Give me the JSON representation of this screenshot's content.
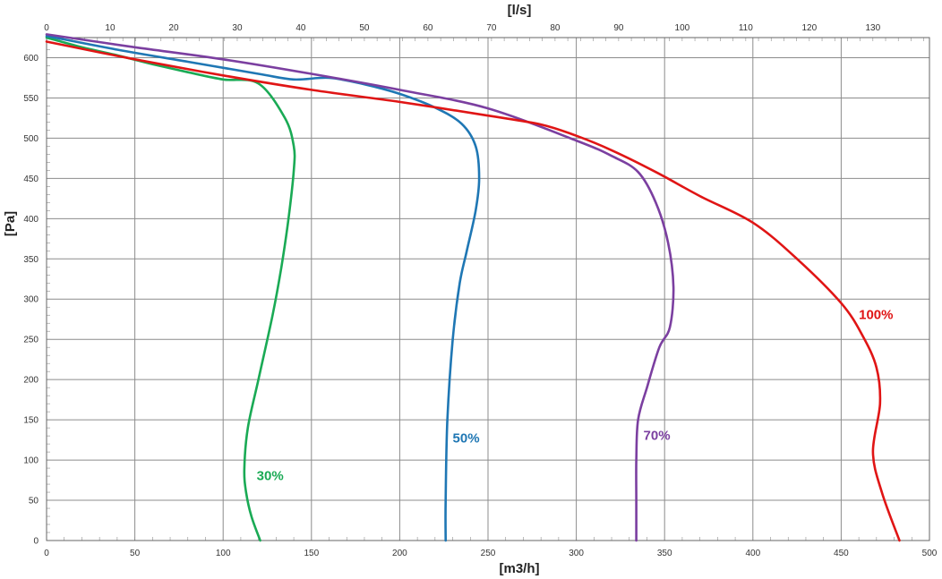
{
  "chart_data": {
    "type": "line",
    "xlabel": "[m3/h]",
    "x2label": "[l/s]",
    "ylabel": "[Pa]",
    "xlim": [
      0,
      500
    ],
    "x2lim": [
      0,
      138.9
    ],
    "ylim": [
      0,
      625
    ],
    "xticks": [
      0,
      50,
      100,
      150,
      200,
      250,
      300,
      350,
      400,
      450,
      500
    ],
    "x2ticks": [
      0,
      10,
      20,
      30,
      40,
      50,
      60,
      70,
      80,
      90,
      100,
      110,
      120,
      130
    ],
    "yticks": [
      0,
      50,
      100,
      150,
      200,
      250,
      300,
      350,
      400,
      450,
      500,
      550,
      600
    ],
    "grid": true,
    "series": [
      {
        "name": "30%",
        "color": "#1aaa55",
        "x": [
          0,
          20,
          40,
          60,
          80,
          100,
          120,
          135,
          140,
          140,
          137,
          133,
          128,
          120,
          114,
          112,
          113,
          116,
          121
        ],
        "y": [
          625,
          613,
          603,
          592,
          582,
          573,
          568,
          525,
          490,
          460,
          400,
          340,
          280,
          200,
          140,
          90,
          60,
          30,
          0
        ]
      },
      {
        "name": "50%",
        "color": "#1f77b4",
        "x": [
          0,
          40,
          80,
          120,
          140,
          160,
          180,
          200,
          220,
          235,
          243,
          245,
          243,
          238,
          234,
          230,
          227,
          226,
          226
        ],
        "y": [
          627,
          610,
          595,
          580,
          573,
          575,
          567,
          555,
          538,
          518,
          490,
          450,
          410,
          360,
          320,
          250,
          150,
          50,
          0
        ]
      },
      {
        "name": "70%",
        "color": "#7b3fa0",
        "x": [
          0,
          50,
          100,
          150,
          200,
          250,
          300,
          320,
          335,
          345,
          352,
          355,
          353,
          347,
          340,
          335,
          334,
          334,
          334
        ],
        "y": [
          629,
          613,
          598,
          580,
          560,
          537,
          497,
          478,
          458,
          420,
          370,
          315,
          265,
          240,
          190,
          150,
          100,
          50,
          0
        ]
      },
      {
        "name": "100%",
        "color": "#e01515",
        "x": [
          0,
          50,
          100,
          150,
          200,
          250,
          280,
          300,
          320,
          345,
          370,
          400,
          425,
          450,
          462,
          470,
          472,
          468,
          473,
          483
        ],
        "y": [
          620,
          598,
          578,
          560,
          545,
          528,
          517,
          503,
          485,
          458,
          428,
          395,
          350,
          295,
          255,
          215,
          170,
          110,
          60,
          0
        ]
      }
    ],
    "series_labels": [
      {
        "text": "30%",
        "x": 119,
        "y": 75
      },
      {
        "text": "50%",
        "x": 230,
        "y": 122
      },
      {
        "text": "70%",
        "x": 338,
        "y": 125
      },
      {
        "text": "100%",
        "x": 460,
        "y": 275
      }
    ]
  }
}
